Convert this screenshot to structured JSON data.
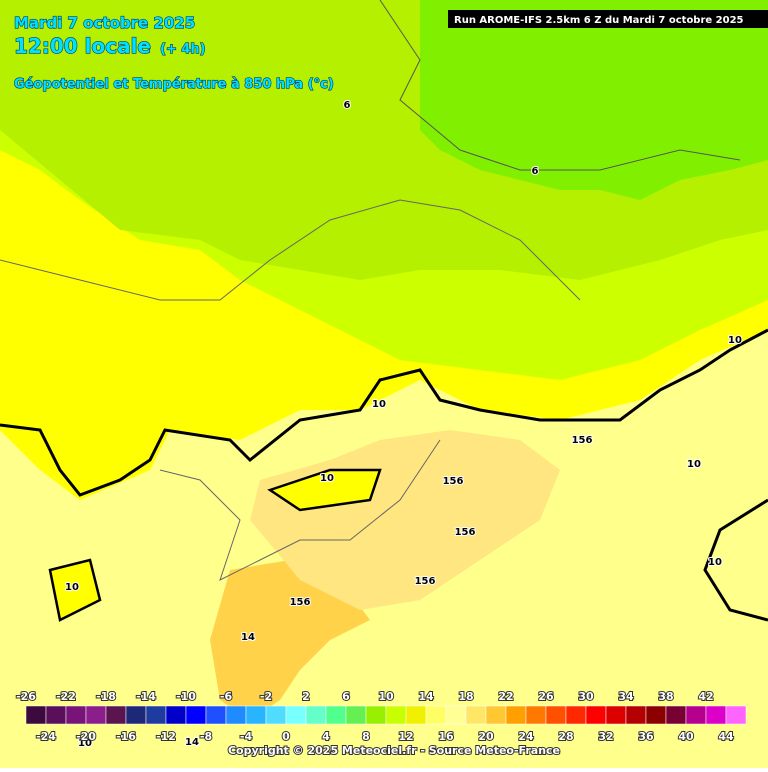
{
  "header": {
    "date": "Mardi 7 octobre 2025",
    "time": "12:00 locale",
    "lead": "(+ 4h)",
    "subtitle": "Géopotentiel et Température à 850 hPa (°c)",
    "run": "Run AROME-IFS 2.5km 6 Z du Mardi 7 octobre 2025"
  },
  "contour_labels": [
    "6",
    "6",
    "10",
    "10",
    "10",
    "10",
    "10",
    "10",
    "10",
    "156",
    "156",
    "156",
    "156",
    "156",
    "14",
    "14"
  ],
  "legend": {
    "top_labels": [
      "-26",
      "-22",
      "-18",
      "-14",
      "-10",
      "-6",
      "-2",
      "2",
      "6",
      "10",
      "14",
      "18",
      "22",
      "26",
      "30",
      "34",
      "38",
      "42"
    ],
    "bottom_labels": [
      "-24",
      "-20",
      "-16",
      "-12",
      "-8",
      "-4",
      "0",
      "4",
      "8",
      "12",
      "16",
      "20",
      "24",
      "28",
      "32",
      "36",
      "40",
      "44"
    ],
    "colors": [
      "#3c0a3c",
      "#5a0f5a",
      "#781478",
      "#8c1e8c",
      "#5a1450",
      "#1e2878",
      "#1e3ca0",
      "#0000c8",
      "#0000ff",
      "#1e50ff",
      "#1e8cff",
      "#28b4ff",
      "#50dcff",
      "#78ffff",
      "#64ffc8",
      "#50ff8c",
      "#64f050",
      "#96f000",
      "#c8ff00",
      "#f0f000",
      "#ffff64",
      "#ffff96",
      "#ffe664",
      "#ffc832",
      "#ffa000",
      "#ff7800",
      "#ff5000",
      "#ff2800",
      "#ff0000",
      "#dc0000",
      "#b40000",
      "#8c0000",
      "#780032",
      "#b4008c",
      "#dc00c8",
      "#ff64ff"
    ]
  },
  "copyright": "Copyright © 2025 Meteociel.fr - Source Meteo-France"
}
